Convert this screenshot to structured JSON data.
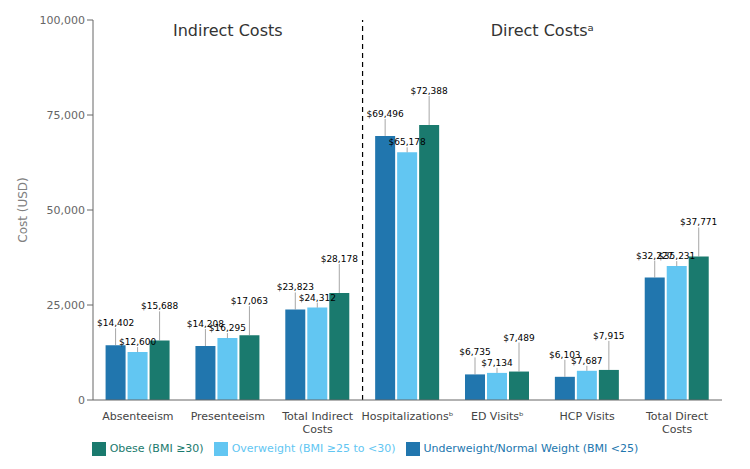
{
  "chart_data": {
    "type": "bar",
    "categories": [
      "Absenteeism",
      "Presenteeism",
      "Total Indirect\nCosts",
      "Hospitalizationsᵇ",
      "ED Visitsᵇ",
      "HCP Visits",
      "Total Direct\nCosts"
    ],
    "series": [
      {
        "name": "Underweight/Normal Weight (BMI <25)",
        "color": "#2176ae",
        "values": [
          14402,
          14208,
          23823,
          69496,
          6735,
          6103,
          32227
        ],
        "value_labels": [
          "$14,402",
          "$14,208",
          "$23,823",
          "$69,496",
          "$6,735",
          "$6,103",
          "$32,227"
        ]
      },
      {
        "name": "Overweight (BMI ≥25 to <30)",
        "color": "#62c6f2",
        "values": [
          12600,
          16295,
          24312,
          65178,
          7134,
          7687,
          35231
        ],
        "value_labels": [
          "$12,600",
          "$16,295",
          "$24,312",
          "$65,178",
          "$7,134",
          "$7,687",
          "$35,231"
        ]
      },
      {
        "name": "Obese (BMI ≥30)",
        "color": "#1a7a6e",
        "values": [
          15688,
          17063,
          28178,
          72388,
          7489,
          7915,
          37771
        ],
        "value_labels": [
          "$15,688",
          "$17,063",
          "$28,178",
          "$72,388",
          "$7,489",
          "$7,915",
          "$37,771"
        ]
      }
    ],
    "ylabel": "Cost (USD)",
    "ylim": [
      0,
      100000
    ],
    "yticks": [
      0,
      {
        "value": 25000,
        "label": "25,000"
      },
      {
        "value": 50000,
        "label": "50,000"
      },
      {
        "value": 75000,
        "label": "75,000"
      },
      {
        "value": 100000,
        "label": "100,000"
      }
    ],
    "annotations": [
      "Indirect Costs",
      "Direct Costsᵃ"
    ],
    "data_labels": true,
    "grid": false,
    "legend": "bottom"
  }
}
